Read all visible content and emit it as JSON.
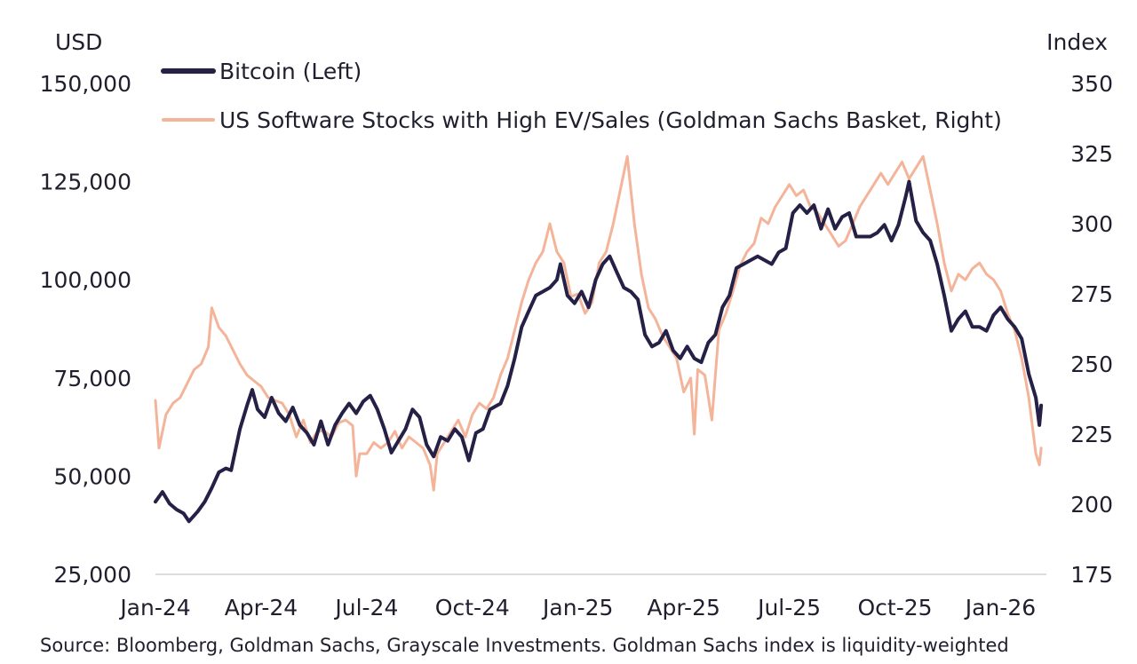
{
  "chart_data": {
    "type": "line",
    "left_axis_unit": "USD",
    "right_axis_unit": "Index",
    "left_ylim": [
      25000,
      150000
    ],
    "right_ylim": [
      175,
      350
    ],
    "left_ticks": [
      "150,000",
      "125,000",
      "100,000",
      "75,000",
      "50,000",
      "25,000"
    ],
    "left_tick_values": [
      150000,
      125000,
      100000,
      75000,
      50000,
      25000
    ],
    "right_ticks": [
      "350",
      "325",
      "300",
      "275",
      "250",
      "225",
      "200",
      "175"
    ],
    "right_tick_values": [
      350,
      325,
      300,
      275,
      250,
      225,
      200,
      175
    ],
    "x_tick_labels": [
      "Jan-24",
      "Apr-24",
      "Jul-24",
      "Oct-24",
      "Jan-25",
      "Apr-25",
      "Jul-25",
      "Oct-25",
      "Jan-26"
    ],
    "x_tick_values": [
      0,
      3,
      6,
      9,
      12,
      15,
      18,
      21,
      24
    ],
    "x_range_months": [
      0,
      25.3
    ],
    "series": [
      {
        "name": "Bitcoin (Left)",
        "axis": "left",
        "color": "#252046",
        "points": [
          [
            0.0,
            43500
          ],
          [
            0.2,
            46000
          ],
          [
            0.4,
            43000
          ],
          [
            0.6,
            41500
          ],
          [
            0.8,
            40500
          ],
          [
            0.95,
            38500
          ],
          [
            1.2,
            41000
          ],
          [
            1.4,
            43500
          ],
          [
            1.6,
            47000
          ],
          [
            1.8,
            51000
          ],
          [
            2.0,
            52000
          ],
          [
            2.15,
            51500
          ],
          [
            2.4,
            62000
          ],
          [
            2.6,
            68000
          ],
          [
            2.75,
            72000
          ],
          [
            2.9,
            67000
          ],
          [
            3.1,
            65000
          ],
          [
            3.3,
            70000
          ],
          [
            3.5,
            66000
          ],
          [
            3.7,
            64000
          ],
          [
            3.9,
            67500
          ],
          [
            4.1,
            63000
          ],
          [
            4.3,
            61000
          ],
          [
            4.5,
            58000
          ],
          [
            4.7,
            64000
          ],
          [
            4.9,
            58000
          ],
          [
            5.1,
            63000
          ],
          [
            5.3,
            66000
          ],
          [
            5.5,
            68500
          ],
          [
            5.7,
            66000
          ],
          [
            5.9,
            69000
          ],
          [
            6.1,
            70500
          ],
          [
            6.3,
            67000
          ],
          [
            6.5,
            62000
          ],
          [
            6.7,
            56000
          ],
          [
            6.9,
            59000
          ],
          [
            7.1,
            62000
          ],
          [
            7.3,
            67000
          ],
          [
            7.5,
            65000
          ],
          [
            7.7,
            58000
          ],
          [
            7.9,
            55000
          ],
          [
            8.1,
            60000
          ],
          [
            8.3,
            59000
          ],
          [
            8.5,
            62000
          ],
          [
            8.7,
            60000
          ],
          [
            8.9,
            54000
          ],
          [
            9.1,
            61000
          ],
          [
            9.3,
            62000
          ],
          [
            9.5,
            67000
          ],
          [
            9.7,
            68000
          ],
          [
            9.8,
            68500
          ],
          [
            10.0,
            73000
          ],
          [
            10.2,
            80000
          ],
          [
            10.4,
            88000
          ],
          [
            10.6,
            92000
          ],
          [
            10.8,
            96000
          ],
          [
            11.0,
            97000
          ],
          [
            11.2,
            98000
          ],
          [
            11.4,
            100000
          ],
          [
            11.5,
            104000
          ],
          [
            11.7,
            96000
          ],
          [
            11.9,
            94000
          ],
          [
            12.1,
            97000
          ],
          [
            12.3,
            93000
          ],
          [
            12.5,
            100000
          ],
          [
            12.7,
            104000
          ],
          [
            12.9,
            106000
          ],
          [
            13.1,
            102000
          ],
          [
            13.3,
            98000
          ],
          [
            13.5,
            97000
          ],
          [
            13.7,
            95000
          ],
          [
            13.9,
            86000
          ],
          [
            14.1,
            83000
          ],
          [
            14.3,
            84000
          ],
          [
            14.5,
            87000
          ],
          [
            14.7,
            82000
          ],
          [
            14.9,
            80000
          ],
          [
            15.1,
            83000
          ],
          [
            15.3,
            80000
          ],
          [
            15.5,
            79000
          ],
          [
            15.7,
            84000
          ],
          [
            15.9,
            86000
          ],
          [
            16.1,
            93000
          ],
          [
            16.3,
            96000
          ],
          [
            16.5,
            103000
          ],
          [
            16.7,
            104000
          ],
          [
            16.9,
            105000
          ],
          [
            17.1,
            106000
          ],
          [
            17.3,
            105000
          ],
          [
            17.5,
            104000
          ],
          [
            17.7,
            107000
          ],
          [
            17.9,
            108000
          ],
          [
            18.1,
            117000
          ],
          [
            18.3,
            119000
          ],
          [
            18.5,
            117000
          ],
          [
            18.7,
            119000
          ],
          [
            18.9,
            113000
          ],
          [
            19.1,
            118000
          ],
          [
            19.3,
            113000
          ],
          [
            19.5,
            116000
          ],
          [
            19.7,
            117000
          ],
          [
            19.9,
            111000
          ],
          [
            20.1,
            111000
          ],
          [
            20.3,
            111000
          ],
          [
            20.5,
            112000
          ],
          [
            20.7,
            114000
          ],
          [
            20.9,
            110000
          ],
          [
            21.1,
            114000
          ],
          [
            21.3,
            121000
          ],
          [
            21.4,
            125000
          ],
          [
            21.6,
            115000
          ],
          [
            21.8,
            112000
          ],
          [
            22.0,
            110000
          ],
          [
            22.2,
            104000
          ],
          [
            22.4,
            96000
          ],
          [
            22.6,
            87000
          ],
          [
            22.8,
            90000
          ],
          [
            23.0,
            92000
          ],
          [
            23.2,
            88000
          ],
          [
            23.4,
            88000
          ],
          [
            23.6,
            87000
          ],
          [
            23.8,
            91000
          ],
          [
            24.0,
            93000
          ],
          [
            24.2,
            90000
          ],
          [
            24.4,
            88000
          ],
          [
            24.6,
            85000
          ],
          [
            24.8,
            76000
          ],
          [
            25.0,
            70000
          ],
          [
            25.1,
            63000
          ],
          [
            25.15,
            68000
          ]
        ]
      },
      {
        "name": "US Software Stocks with High EV/Sales (Goldman Sachs Basket, Right)",
        "axis": "right",
        "color": "#f4b49a",
        "points": [
          [
            0.0,
            237
          ],
          [
            0.1,
            220
          ],
          [
            0.3,
            232
          ],
          [
            0.5,
            236
          ],
          [
            0.7,
            238
          ],
          [
            0.9,
            243
          ],
          [
            1.1,
            248
          ],
          [
            1.3,
            250
          ],
          [
            1.5,
            256
          ],
          [
            1.6,
            270
          ],
          [
            1.8,
            263
          ],
          [
            2.0,
            260
          ],
          [
            2.2,
            255
          ],
          [
            2.4,
            250
          ],
          [
            2.6,
            246
          ],
          [
            2.8,
            244
          ],
          [
            3.0,
            242
          ],
          [
            3.2,
            238
          ],
          [
            3.4,
            237
          ],
          [
            3.6,
            236
          ],
          [
            3.8,
            232
          ],
          [
            4.0,
            224
          ],
          [
            4.2,
            230
          ],
          [
            4.4,
            222
          ],
          [
            4.6,
            226
          ],
          [
            4.8,
            226
          ],
          [
            5.0,
            224
          ],
          [
            5.2,
            229
          ],
          [
            5.4,
            230
          ],
          [
            5.6,
            228
          ],
          [
            5.7,
            210
          ],
          [
            5.8,
            218
          ],
          [
            6.0,
            218
          ],
          [
            6.2,
            222
          ],
          [
            6.4,
            220
          ],
          [
            6.6,
            222
          ],
          [
            6.8,
            226
          ],
          [
            7.0,
            220
          ],
          [
            7.2,
            224
          ],
          [
            7.4,
            222
          ],
          [
            7.6,
            220
          ],
          [
            7.8,
            214
          ],
          [
            7.9,
            205
          ],
          [
            8.0,
            218
          ],
          [
            8.2,
            222
          ],
          [
            8.4,
            226
          ],
          [
            8.6,
            230
          ],
          [
            8.8,
            224
          ],
          [
            9.0,
            232
          ],
          [
            9.2,
            236
          ],
          [
            9.4,
            234
          ],
          [
            9.6,
            238
          ],
          [
            9.8,
            246
          ],
          [
            10.0,
            252
          ],
          [
            10.2,
            262
          ],
          [
            10.4,
            272
          ],
          [
            10.6,
            280
          ],
          [
            10.8,
            286
          ],
          [
            11.0,
            290
          ],
          [
            11.2,
            300
          ],
          [
            11.4,
            290
          ],
          [
            11.6,
            286
          ],
          [
            11.8,
            274
          ],
          [
            12.0,
            275
          ],
          [
            12.2,
            268
          ],
          [
            12.4,
            272
          ],
          [
            12.6,
            286
          ],
          [
            12.8,
            290
          ],
          [
            13.0,
            300
          ],
          [
            13.2,
            312
          ],
          [
            13.4,
            324
          ],
          [
            13.6,
            300
          ],
          [
            13.8,
            282
          ],
          [
            14.0,
            270
          ],
          [
            14.2,
            266
          ],
          [
            14.4,
            260
          ],
          [
            14.6,
            256
          ],
          [
            14.8,
            252
          ],
          [
            15.0,
            240
          ],
          [
            15.2,
            245
          ],
          [
            15.3,
            225
          ],
          [
            15.4,
            248
          ],
          [
            15.6,
            246
          ],
          [
            15.8,
            230
          ],
          [
            16.0,
            262
          ],
          [
            16.2,
            268
          ],
          [
            16.4,
            276
          ],
          [
            16.6,
            285
          ],
          [
            16.8,
            290
          ],
          [
            17.0,
            293
          ],
          [
            17.2,
            302
          ],
          [
            17.4,
            300
          ],
          [
            17.6,
            306
          ],
          [
            17.8,
            310
          ],
          [
            18.0,
            314
          ],
          [
            18.2,
            310
          ],
          [
            18.4,
            312
          ],
          [
            18.6,
            306
          ],
          [
            18.8,
            304
          ],
          [
            19.0,
            300
          ],
          [
            19.2,
            296
          ],
          [
            19.4,
            292
          ],
          [
            19.6,
            294
          ],
          [
            19.8,
            300
          ],
          [
            20.0,
            306
          ],
          [
            20.2,
            310
          ],
          [
            20.4,
            314
          ],
          [
            20.6,
            318
          ],
          [
            20.8,
            314
          ],
          [
            21.0,
            318
          ],
          [
            21.2,
            322
          ],
          [
            21.4,
            316
          ],
          [
            21.6,
            320
          ],
          [
            21.8,
            324
          ],
          [
            22.0,
            312
          ],
          [
            22.2,
            300
          ],
          [
            22.4,
            286
          ],
          [
            22.6,
            276
          ],
          [
            22.8,
            282
          ],
          [
            23.0,
            280
          ],
          [
            23.2,
            284
          ],
          [
            23.4,
            286
          ],
          [
            23.6,
            282
          ],
          [
            23.8,
            280
          ],
          [
            24.0,
            276
          ],
          [
            24.2,
            268
          ],
          [
            24.4,
            262
          ],
          [
            24.6,
            252
          ],
          [
            24.8,
            238
          ],
          [
            25.0,
            218
          ],
          [
            25.1,
            214
          ],
          [
            25.15,
            220
          ]
        ]
      }
    ]
  },
  "source_note": "Source: Bloomberg, Goldman Sachs, Grayscale Investments. Goldman Sachs index is liquidity-weighted"
}
